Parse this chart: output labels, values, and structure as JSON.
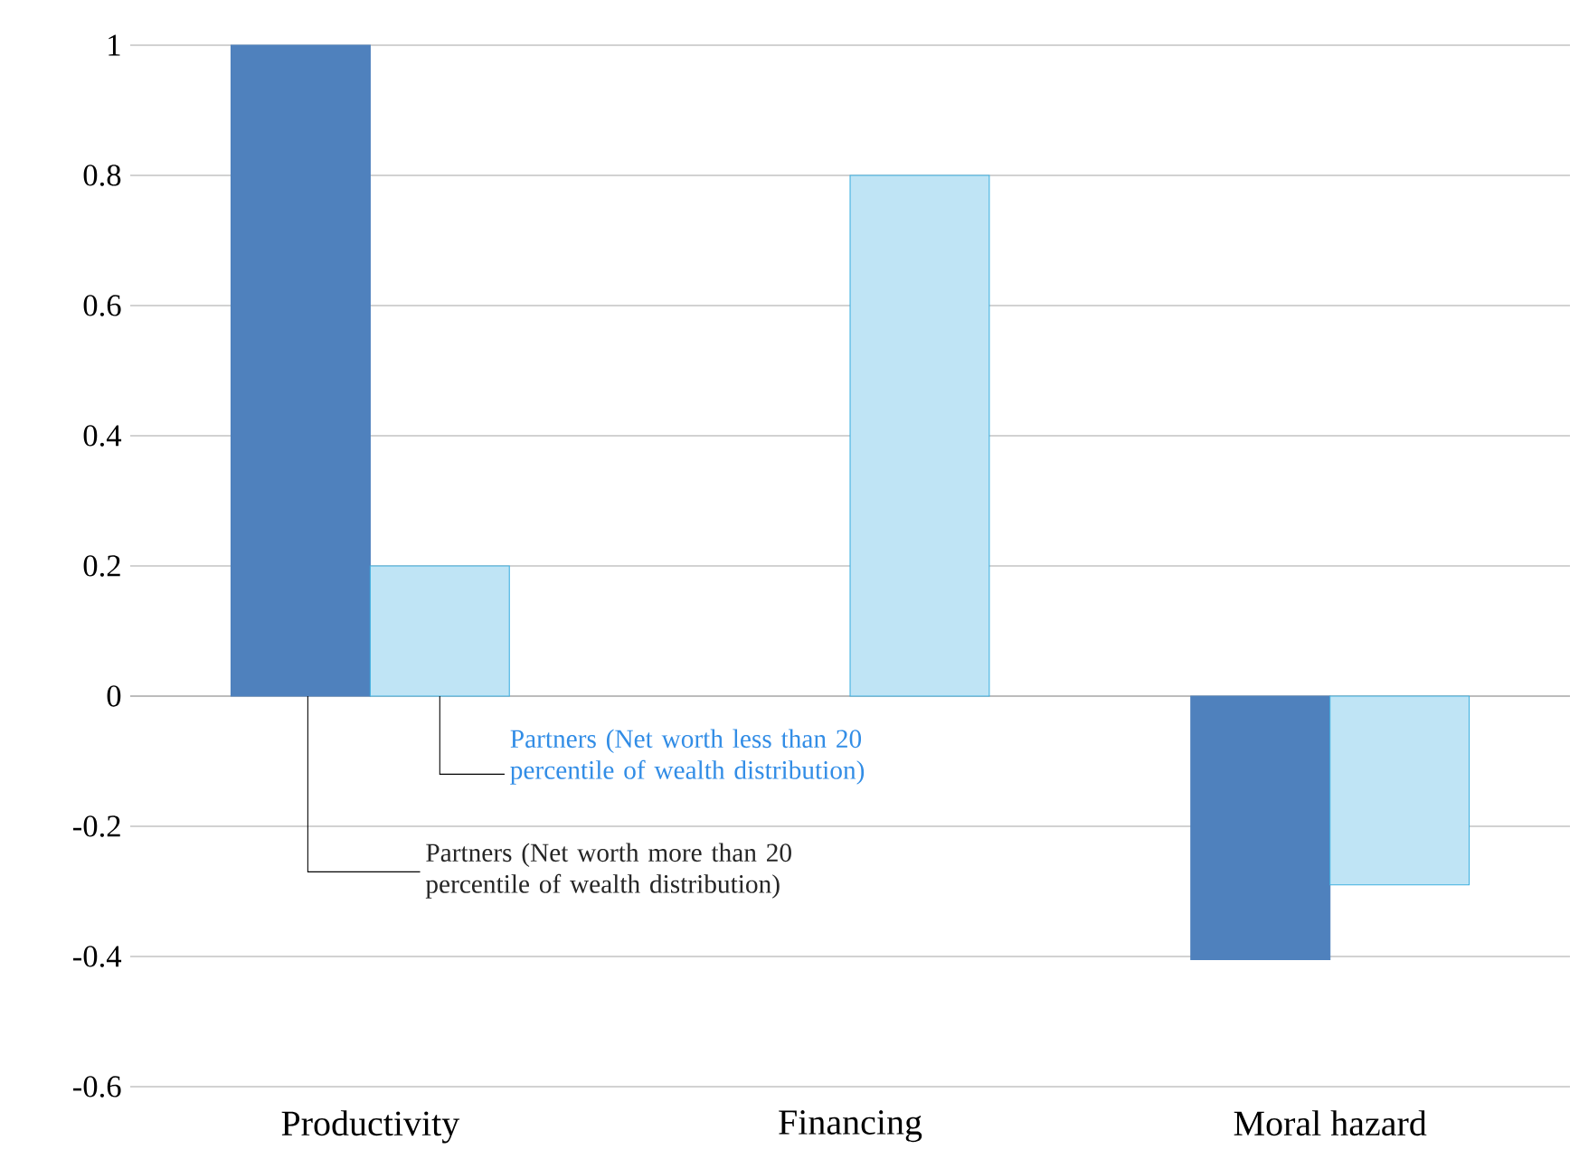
{
  "chart_data": {
    "type": "bar",
    "categories": [
      "Productivity",
      "Financing",
      "Moral hazard"
    ],
    "series": [
      {
        "name": "Partners (Net worth more than 20 percentile of wealth distribution)",
        "color": "#4f81bd",
        "values": [
          1,
          null,
          -0.405
        ]
      },
      {
        "name": "Partners (Net worth less than 20 percentile of wealth distribution)",
        "color": "#bfe4f5",
        "values": [
          0.2,
          0.8,
          -0.29
        ]
      }
    ],
    "ylim": [
      -0.6,
      1
    ],
    "yticks": [
      -0.6,
      -0.4,
      -0.2,
      0,
      0.2,
      0.4,
      0.6,
      0.8,
      1
    ],
    "grid": "y"
  }
}
